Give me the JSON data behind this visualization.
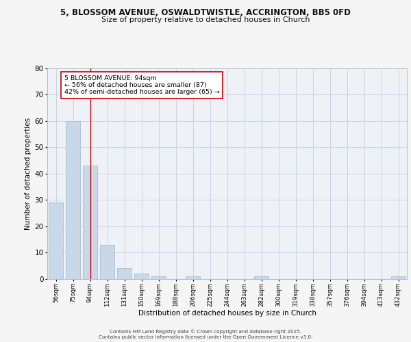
{
  "title1": "5, BLOSSOM AVENUE, OSWALDTWISTLE, ACCRINGTON, BB5 0FD",
  "title2": "Size of property relative to detached houses in Church",
  "xlabel": "Distribution of detached houses by size in Church",
  "ylabel": "Number of detached properties",
  "categories": [
    "56sqm",
    "75sqm",
    "94sqm",
    "112sqm",
    "131sqm",
    "150sqm",
    "169sqm",
    "188sqm",
    "206sqm",
    "225sqm",
    "244sqm",
    "263sqm",
    "282sqm",
    "300sqm",
    "319sqm",
    "338sqm",
    "357sqm",
    "376sqm",
    "394sqm",
    "413sqm",
    "432sqm"
  ],
  "values": [
    29,
    60,
    43,
    13,
    4,
    2,
    1,
    0,
    1,
    0,
    0,
    0,
    1,
    0,
    0,
    0,
    0,
    0,
    0,
    0,
    1
  ],
  "bar_color": "#c8d8e8",
  "bar_edge_color": "#a0b8cc",
  "marker_index": 2,
  "marker_line_color": "#cc0000",
  "annotation_text": "5 BLOSSOM AVENUE: 94sqm\n← 56% of detached houses are smaller (87)\n42% of semi-detached houses are larger (65) →",
  "annotation_box_color": "#ffffff",
  "annotation_box_edge": "#cc0000",
  "ylim": [
    0,
    80
  ],
  "yticks": [
    0,
    10,
    20,
    30,
    40,
    50,
    60,
    70,
    80
  ],
  "footer1": "Contains HM Land Registry data © Crown copyright and database right 2025.",
  "footer2": "Contains public sector information licensed under the Open Government Licence v3.0.",
  "bg_color": "#eef2f7",
  "fig_bg_color": "#f5f5f5",
  "grid_color": "#c8d4e0"
}
